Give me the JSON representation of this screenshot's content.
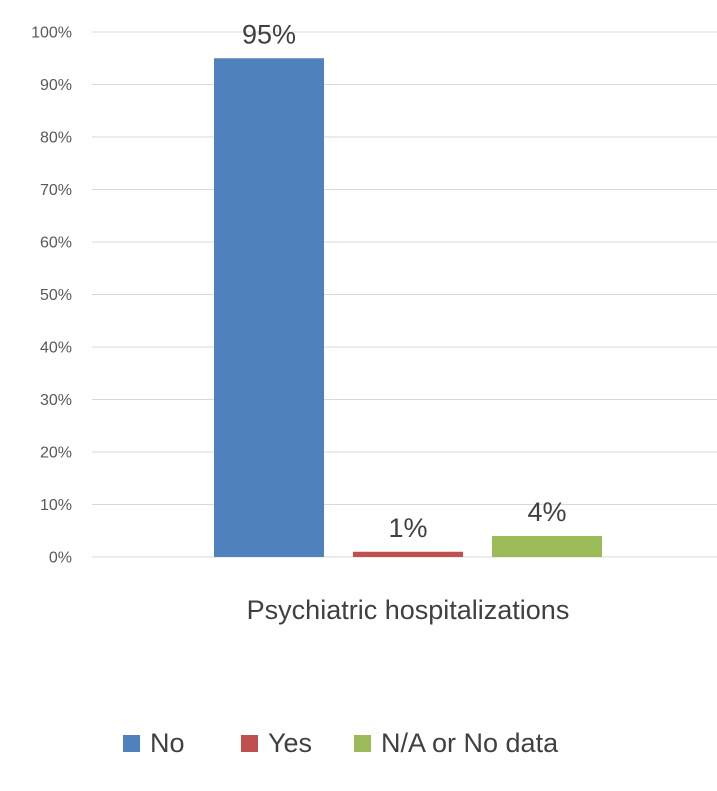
{
  "chart_data": {
    "type": "bar",
    "categories": [
      "Psychiatric hospitalizations"
    ],
    "series": [
      {
        "name": "No",
        "values": [
          95
        ],
        "color": "#4f81bd"
      },
      {
        "name": "Yes",
        "values": [
          1
        ],
        "color": "#c0504d"
      },
      {
        "name": "N/A or No data",
        "values": [
          4
        ],
        "color": "#9bbb59"
      }
    ],
    "data_labels": [
      "95%",
      "1%",
      "4%"
    ],
    "ylim": [
      0,
      100
    ],
    "yticks": [
      0,
      10,
      20,
      30,
      40,
      50,
      60,
      70,
      80,
      90,
      100
    ],
    "ytick_labels": [
      "0%",
      "10%",
      "20%",
      "30%",
      "40%",
      "50%",
      "60%",
      "70%",
      "80%",
      "90%",
      "100%"
    ],
    "grid": true,
    "legend": "bottom",
    "title": "",
    "xlabel": "",
    "ylabel": ""
  }
}
